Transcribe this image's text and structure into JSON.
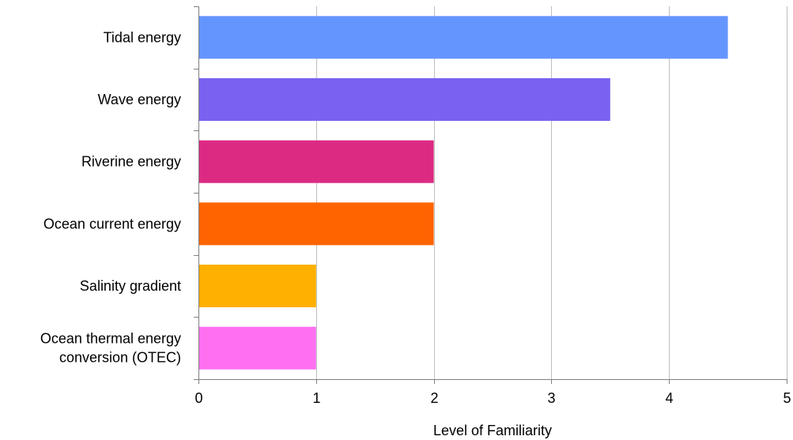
{
  "chart_data": {
    "type": "bar",
    "orientation": "horizontal",
    "categories": [
      "Tidal energy",
      "Wave energy",
      "Riverine energy",
      "Ocean current energy",
      "Salinity gradient",
      "Ocean thermal energy conversion (OTEC)"
    ],
    "category_lines": [
      [
        "Tidal energy"
      ],
      [
        "Wave energy"
      ],
      [
        "Riverine energy"
      ],
      [
        "Ocean current energy"
      ],
      [
        "Salinity gradient"
      ],
      [
        "Ocean thermal energy",
        "conversion (OTEC)"
      ]
    ],
    "values": [
      4.5,
      3.5,
      2,
      2,
      1,
      1
    ],
    "colors": [
      "#6495ff",
      "#7b61f0",
      "#dc2a82",
      "#ff6400",
      "#ffb000",
      "#ff70f0"
    ],
    "xlabel": "Level of Familiarity",
    "ylabel": "",
    "xlim": [
      0,
      5
    ],
    "xticks": [
      "0",
      "1",
      "2",
      "3",
      "4",
      "5"
    ],
    "grid": "vertical",
    "legend": "none"
  }
}
